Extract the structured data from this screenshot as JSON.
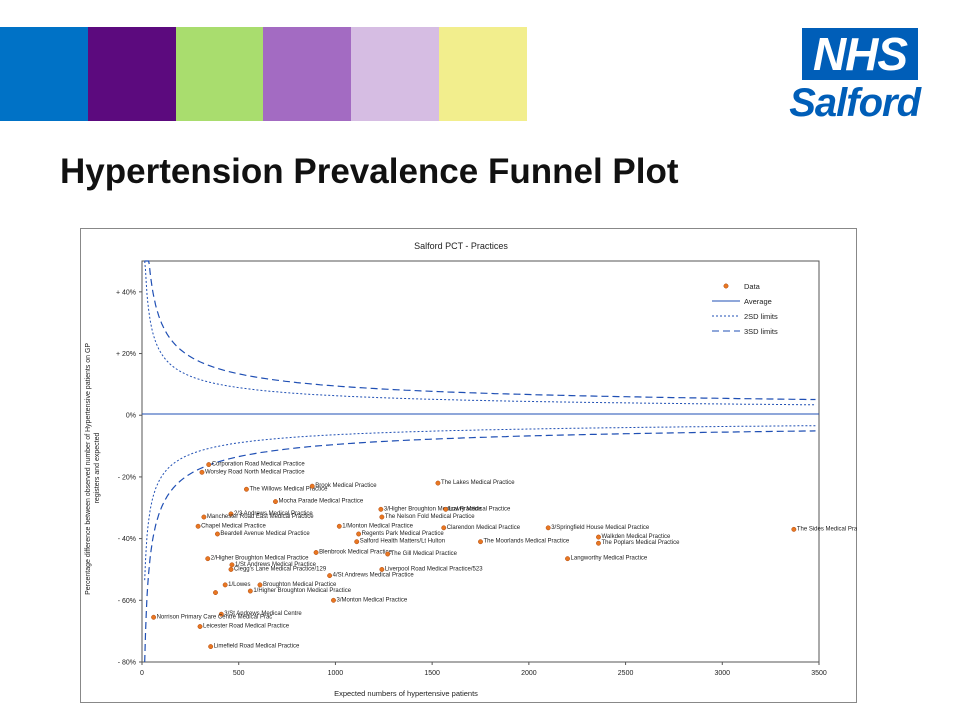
{
  "header": {
    "bands": [
      "#0072c6",
      "#5c0a7e",
      "#a9dd6e",
      "#a36bc2",
      "#d6bde3",
      "#f2ee8d"
    ],
    "logo_text": "NHS",
    "logo_org": "Salford",
    "brand_color": "#005eb8"
  },
  "title": "Hypertension Prevalence Funnel Plot",
  "chart_data": {
    "type": "scatter",
    "title": "Salford PCT - Practices",
    "xlabel": "Expected numbers of hypertensive patients",
    "ylabel": "Percentage difference between observed number of Hypertensive patients on GP registers and expected",
    "xlim": [
      0,
      3500
    ],
    "ylim": [
      -80,
      50
    ],
    "x_ticks": [
      "0",
      "500",
      "1000",
      "1500",
      "2000",
      "2500",
      "3000",
      "3500"
    ],
    "y_ticks": [
      "- 80%",
      "- 60%",
      "- 40%",
      "- 20%",
      "0%",
      "+ 20%",
      "+ 40%"
    ],
    "legend": [
      "Data",
      "Average",
      "2SD limits",
      "3SD limits"
    ],
    "legend_position": "top-right",
    "colors": {
      "point": "#e87722",
      "line": "#1f4fb4"
    },
    "points": [
      {
        "x": 345,
        "y": -16,
        "label": "Corporation Road Medical Practice"
      },
      {
        "x": 310,
        "y": -18.5,
        "label": "Worsley Road North Medical Practice"
      },
      {
        "x": 540,
        "y": -24,
        "label": "The Willows Medical Practice"
      },
      {
        "x": 880,
        "y": -23,
        "label": "Brook Medical Practice"
      },
      {
        "x": 1530,
        "y": -22,
        "label": "The Lakes Medical Practice"
      },
      {
        "x": 690,
        "y": -28,
        "label": "Mocha Parade Medical Practice"
      },
      {
        "x": 460,
        "y": -32,
        "label": "2/3 Andrews Medical Practice"
      },
      {
        "x": 320,
        "y": -33,
        "label": "Manchester Road East Medical Practice"
      },
      {
        "x": 1235,
        "y": -30.5,
        "label": "3/Higher Broughton Medical Practice"
      },
      {
        "x": 1570,
        "y": -30.5,
        "label": "Lowry Medical Practice"
      },
      {
        "x": 1240,
        "y": -33,
        "label": "The Nelson Fold Medical Practice"
      },
      {
        "x": 290,
        "y": -36,
        "label": "Chapel Medical Practice"
      },
      {
        "x": 1020,
        "y": -36,
        "label": "1/Monton Medical Practice"
      },
      {
        "x": 1560,
        "y": -36.5,
        "label": "Clarendon Medical Practice"
      },
      {
        "x": 2100,
        "y": -36.5,
        "label": "3/Springfield House Medical Practice"
      },
      {
        "x": 3370,
        "y": -37,
        "label": "The Sides Medical Practice"
      },
      {
        "x": 390,
        "y": -38.5,
        "label": "Beardell Avenue Medical Practice"
      },
      {
        "x": 1120,
        "y": -38.5,
        "label": "Regents Park Medical Practice"
      },
      {
        "x": 2360,
        "y": -39.5,
        "label": "Walkden Medical Practice"
      },
      {
        "x": 1110,
        "y": -41,
        "label": "Salford Health Matters/Lt Hulton"
      },
      {
        "x": 1750,
        "y": -41,
        "label": "The Moorlands Medical Practice"
      },
      {
        "x": 2360,
        "y": -41.5,
        "label": "The Poplars Medical Practice"
      },
      {
        "x": 900,
        "y": -44.5,
        "label": "Blenbrook Medical Practice"
      },
      {
        "x": 1270,
        "y": -45,
        "label": "The Gill Medical Practice"
      },
      {
        "x": 340,
        "y": -46.5,
        "label": "2/Higher Broughton Medical Practice"
      },
      {
        "x": 2200,
        "y": -46.5,
        "label": "Langworthy Medical Practice"
      },
      {
        "x": 465,
        "y": -48.5,
        "label": "1/St Andrews Medical Practice"
      },
      {
        "x": 460,
        "y": -50,
        "label": "Clegg's Lane Medical Practice/129"
      },
      {
        "x": 1240,
        "y": -50,
        "label": "Liverpool Road Medical Practice/523"
      },
      {
        "x": 970,
        "y": -52,
        "label": "4/St Andrews Medical Practice"
      },
      {
        "x": 430,
        "y": -55,
        "label": "1/Lowes"
      },
      {
        "x": 610,
        "y": -55,
        "label": "Broughton Medical Practice"
      },
      {
        "x": 560,
        "y": -57,
        "label": "1/Higher Broughton Medical Practice"
      },
      {
        "x": 380,
        "y": -57.5,
        "label": ""
      },
      {
        "x": 990,
        "y": -60,
        "label": "3/Monton Medical Practice"
      },
      {
        "x": 410,
        "y": -64.5,
        "label": "3/St Andrews Medical Centre"
      },
      {
        "x": 60,
        "y": -65.5,
        "label": "Norrison Primary Care Centre Medical Prac"
      },
      {
        "x": 300,
        "y": -68.5,
        "label": "Leicester Road Medical Practice"
      },
      {
        "x": 355,
        "y": -75,
        "label": "Limefield Road Medical Practice"
      }
    ]
  }
}
